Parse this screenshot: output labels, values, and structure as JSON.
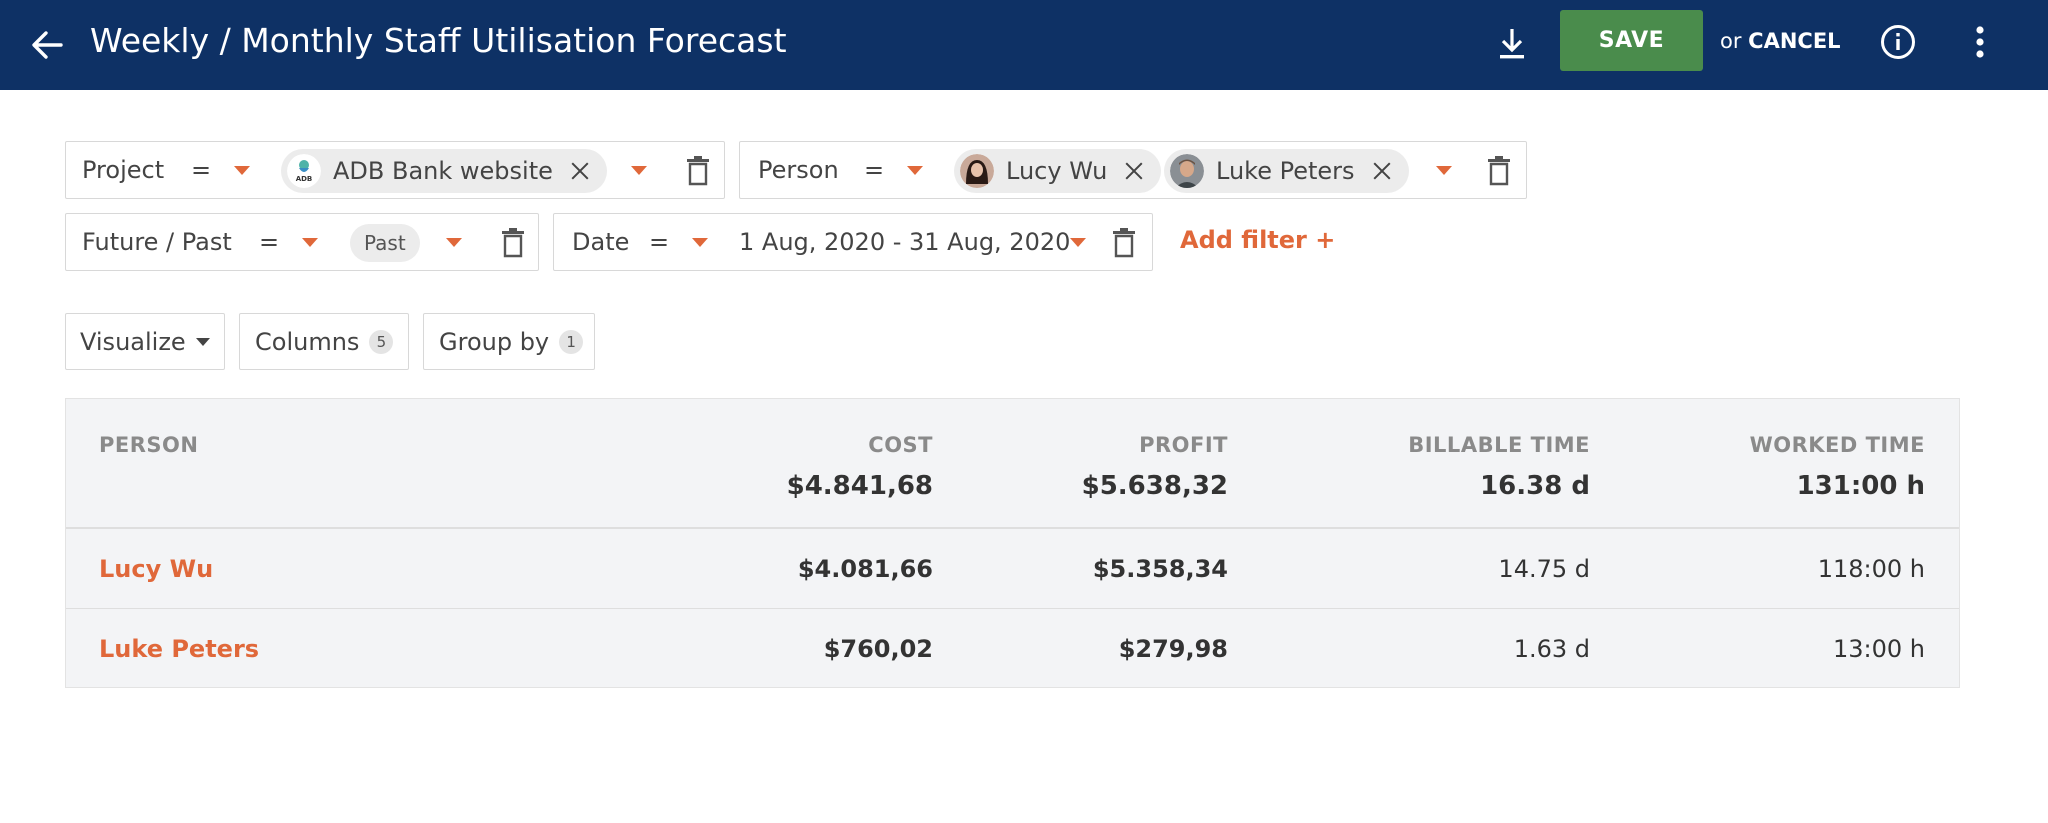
{
  "header": {
    "title": "Weekly / Monthly Staff Utilisation Forecast",
    "save_label": "SAVE",
    "or_label": "or",
    "cancel_label": "CANCEL",
    "icons": [
      "arrow-left-icon",
      "download-icon",
      "info-icon",
      "more-vertical-icon"
    ]
  },
  "filters": {
    "project": {
      "label": "Project",
      "operator": "=",
      "chips": [
        {
          "name": "ADB Bank website",
          "avatar_text": "ADB"
        }
      ]
    },
    "person": {
      "label": "Person",
      "operator": "=",
      "chips": [
        {
          "name": "Lucy Wu"
        },
        {
          "name": "Luke Peters"
        }
      ]
    },
    "future_past": {
      "label": "Future / Past",
      "operator": "=",
      "value": "Past"
    },
    "date": {
      "label": "Date",
      "operator": "=",
      "value": "1 Aug, 2020 - 31 Aug, 2020"
    },
    "add_filter_label": "Add filter +"
  },
  "toolbar": {
    "visualize_label": "Visualize",
    "columns_label": "Columns",
    "columns_count": "5",
    "group_by_label": "Group by",
    "group_by_count": "1"
  },
  "table": {
    "columns": [
      "PERSON",
      "COST",
      "PROFIT",
      "BILLABLE TIME",
      "WORKED TIME"
    ],
    "totals": {
      "cost": "$4.841,68",
      "profit": "$5.638,32",
      "billable_time": "16.38 d",
      "worked_time": "131:00 h"
    },
    "rows": [
      {
        "person": "Lucy Wu",
        "cost": "$4.081,66",
        "profit": "$5.358,34",
        "billable_time": "14.75 d",
        "worked_time": "118:00 h"
      },
      {
        "person": "Luke Peters",
        "cost": "$760,02",
        "profit": "$279,98",
        "billable_time": "1.63 d",
        "worked_time": "13:00 h"
      }
    ]
  },
  "colors": {
    "header_bg": "#0e3165",
    "save_bg": "#4a8c4c",
    "accent": "#e0683a"
  }
}
